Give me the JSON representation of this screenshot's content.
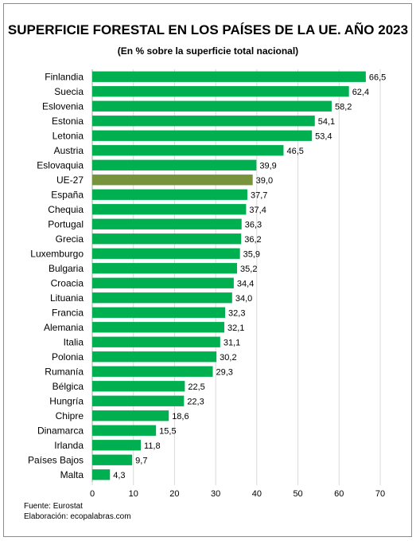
{
  "chart_data": {
    "type": "bar",
    "orientation": "horizontal",
    "title": "SUPERFICIE FORESTAL EN LOS PAÍSES DE LA UE. AÑO 2023",
    "subtitle": "(En % sobre la superficie total nacional)",
    "categories": [
      "Finlandia",
      "Suecia",
      "Eslovenia",
      "Estonia",
      "Letonia",
      "Austria",
      "Eslovaquia",
      "UE-27",
      "España",
      "Chequia",
      "Portugal",
      "Grecia",
      "Luxemburgo",
      "Bulgaria",
      "Croacia",
      "Lituania",
      "Francia",
      "Alemania",
      "Italia",
      "Polonia",
      "Rumanía",
      "Bélgica",
      "Hungría",
      "Chipre",
      "Dinamarca",
      "Irlanda",
      "Países Bajos",
      "Malta"
    ],
    "values": [
      66.5,
      62.4,
      58.2,
      54.1,
      53.4,
      46.5,
      39.9,
      39.0,
      37.7,
      37.4,
      36.3,
      36.2,
      35.9,
      35.2,
      34.4,
      34.0,
      32.3,
      32.1,
      31.1,
      30.2,
      29.3,
      22.5,
      22.3,
      18.6,
      15.5,
      11.8,
      9.7,
      4.3
    ],
    "value_labels": [
      "66,5",
      "62,4",
      "58,2",
      "54,1",
      "53,4",
      "46,5",
      "39,9",
      "39,0",
      "37,7",
      "37,4",
      "36,3",
      "36,2",
      "35,9",
      "35,2",
      "34,4",
      "34,0",
      "32,3",
      "32,1",
      "31,1",
      "30,2",
      "29,3",
      "22,5",
      "22,3",
      "18,6",
      "15,5",
      "11,8",
      "9,7",
      "4,3"
    ],
    "xlim": [
      0,
      70
    ],
    "xticks": [
      0,
      10,
      20,
      30,
      40,
      50,
      60,
      70
    ],
    "grid": true,
    "colors": {
      "bar": "#00b050",
      "highlight": "#77933c",
      "grid": "#d9d9d9"
    },
    "highlight_category": "UE-27"
  },
  "footer": {
    "source": "Fuente: Eurostat",
    "credit": "Elaboración: ecopalabras.com"
  }
}
